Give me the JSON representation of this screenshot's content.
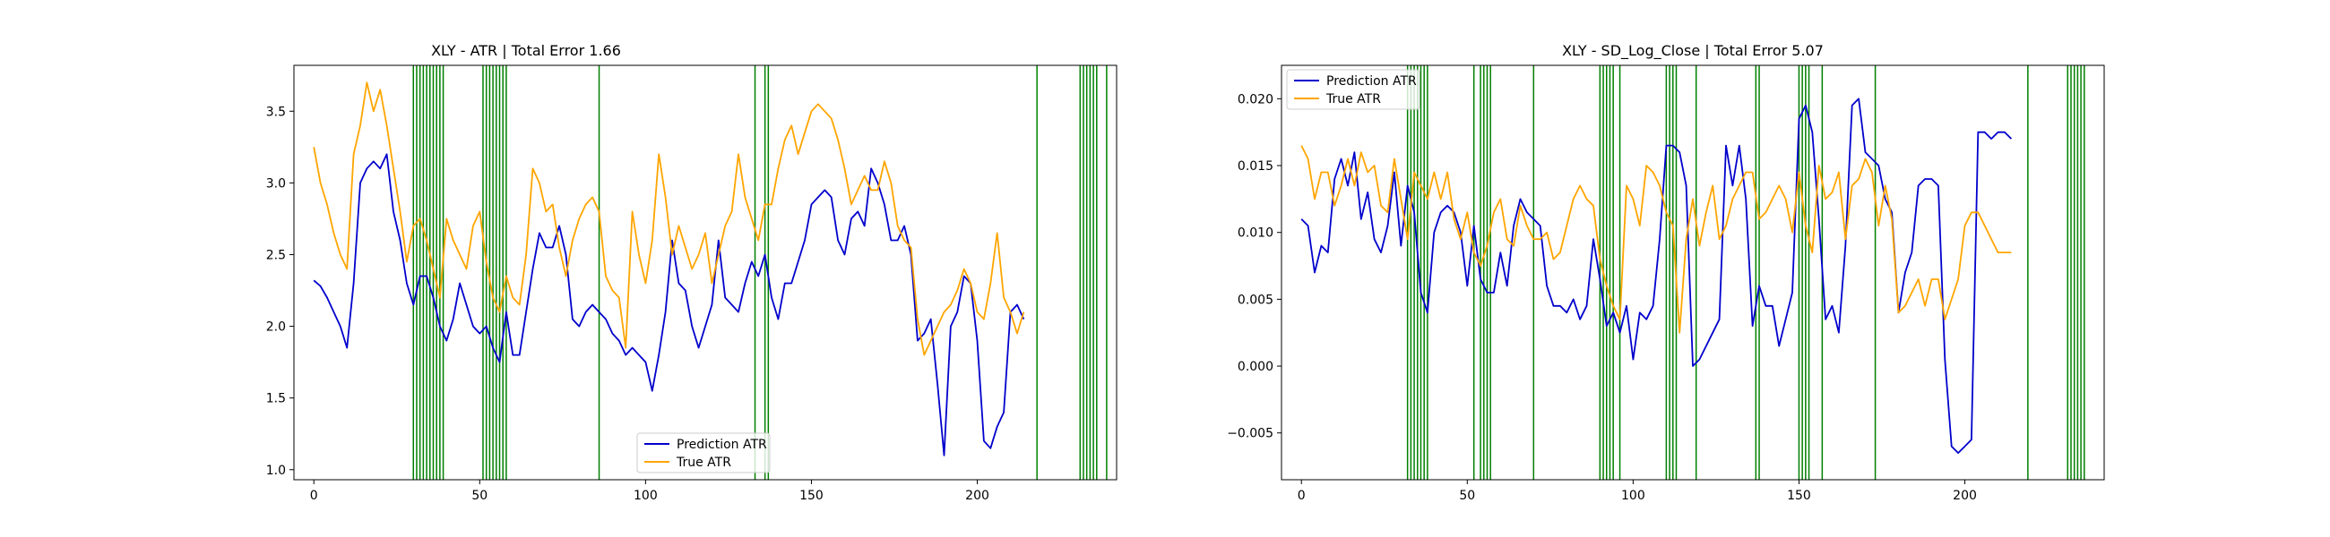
{
  "colors": {
    "prediction": "#0000cc",
    "true": "#ffa500",
    "vline": "#008000",
    "axis": "#000000"
  },
  "chart_data": [
    {
      "type": "line",
      "title": "XLY - ATR | Total Error 1.66",
      "xlabel": "",
      "ylabel": "",
      "xlim": [
        -6,
        242
      ],
      "ylim": [
        0.93,
        3.82
      ],
      "xticks": [
        0,
        50,
        100,
        150,
        200
      ],
      "yticks": [
        1.0,
        1.5,
        2.0,
        2.5,
        3.0,
        3.5
      ],
      "ytick_labels": [
        "1.0",
        "1.5",
        "2.0",
        "2.5",
        "3.0",
        "3.5"
      ],
      "grid": false,
      "legend_position": "lower-center",
      "vlines": [
        30,
        31,
        32,
        33,
        34,
        35,
        36,
        37,
        38,
        39,
        51,
        52,
        53,
        54,
        55,
        56,
        57,
        58,
        86,
        133,
        136,
        137,
        218,
        231,
        232,
        233,
        234,
        235,
        236,
        239
      ],
      "series": [
        {
          "name": "Prediction ATR",
          "color_key": "prediction",
          "x": [
            0,
            2,
            4,
            6,
            8,
            10,
            12,
            14,
            16,
            18,
            20,
            22,
            24,
            26,
            28,
            30,
            32,
            34,
            36,
            38,
            40,
            42,
            44,
            46,
            48,
            50,
            52,
            54,
            56,
            58,
            60,
            62,
            64,
            66,
            68,
            70,
            72,
            74,
            76,
            78,
            80,
            82,
            84,
            86,
            88,
            90,
            92,
            94,
            96,
            98,
            100,
            102,
            104,
            106,
            108,
            110,
            112,
            114,
            116,
            118,
            120,
            122,
            124,
            126,
            128,
            130,
            132,
            134,
            136,
            138,
            140,
            142,
            144,
            146,
            148,
            150,
            152,
            154,
            156,
            158,
            160,
            162,
            164,
            166,
            168,
            170,
            172,
            174,
            176,
            178,
            180,
            182,
            184,
            186,
            188,
            190,
            192,
            194,
            196,
            198,
            200,
            202,
            204,
            206,
            208,
            210,
            212,
            214
          ],
          "y": [
            2.32,
            2.28,
            2.2,
            2.1,
            2.0,
            1.85,
            2.3,
            3.0,
            3.1,
            3.15,
            3.1,
            3.2,
            2.8,
            2.6,
            2.3,
            2.15,
            2.35,
            2.35,
            2.2,
            2.0,
            1.9,
            2.05,
            2.3,
            2.15,
            2.0,
            1.95,
            2.0,
            1.85,
            1.75,
            2.1,
            1.8,
            1.8,
            2.1,
            2.4,
            2.65,
            2.55,
            2.55,
            2.7,
            2.5,
            2.05,
            2.0,
            2.1,
            2.15,
            2.1,
            2.05,
            1.95,
            1.9,
            1.8,
            1.85,
            1.8,
            1.75,
            1.55,
            1.8,
            2.1,
            2.6,
            2.3,
            2.25,
            2.0,
            1.85,
            2.0,
            2.15,
            2.6,
            2.2,
            2.15,
            2.1,
            2.3,
            2.45,
            2.35,
            2.5,
            2.2,
            2.05,
            2.3,
            2.3,
            2.45,
            2.6,
            2.85,
            2.9,
            2.95,
            2.9,
            2.6,
            2.5,
            2.75,
            2.8,
            2.7,
            3.1,
            3.0,
            2.85,
            2.6,
            2.6,
            2.7,
            2.5,
            1.9,
            1.95,
            2.05,
            1.6,
            1.1,
            2.0,
            2.1,
            2.35,
            2.3,
            1.9,
            1.2,
            1.15,
            1.3,
            1.4,
            2.1,
            2.15,
            2.05
          ]
        },
        {
          "name": "True ATR",
          "color_key": "true",
          "x": [
            0,
            2,
            4,
            6,
            8,
            10,
            12,
            14,
            16,
            18,
            20,
            22,
            24,
            26,
            28,
            30,
            32,
            34,
            36,
            38,
            40,
            42,
            44,
            46,
            48,
            50,
            52,
            54,
            56,
            58,
            60,
            62,
            64,
            66,
            68,
            70,
            72,
            74,
            76,
            78,
            80,
            82,
            84,
            86,
            88,
            90,
            92,
            94,
            96,
            98,
            100,
            102,
            104,
            106,
            108,
            110,
            112,
            114,
            116,
            118,
            120,
            122,
            124,
            126,
            128,
            130,
            132,
            134,
            136,
            138,
            140,
            142,
            144,
            146,
            148,
            150,
            152,
            154,
            156,
            158,
            160,
            162,
            164,
            166,
            168,
            170,
            172,
            174,
            176,
            178,
            180,
            182,
            184,
            186,
            188,
            190,
            192,
            194,
            196,
            198,
            200,
            202,
            204,
            206,
            208,
            210,
            212,
            214
          ],
          "y": [
            3.25,
            3.0,
            2.85,
            2.65,
            2.5,
            2.4,
            3.2,
            3.4,
            3.7,
            3.5,
            3.65,
            3.4,
            3.1,
            2.8,
            2.45,
            2.7,
            2.75,
            2.6,
            2.4,
            2.2,
            2.75,
            2.6,
            2.5,
            2.4,
            2.7,
            2.8,
            2.45,
            2.2,
            2.1,
            2.35,
            2.2,
            2.15,
            2.5,
            3.1,
            3.0,
            2.8,
            2.85,
            2.55,
            2.35,
            2.6,
            2.75,
            2.85,
            2.9,
            2.8,
            2.35,
            2.25,
            2.2,
            1.85,
            2.8,
            2.5,
            2.3,
            2.6,
            3.2,
            2.9,
            2.5,
            2.7,
            2.55,
            2.4,
            2.5,
            2.65,
            2.3,
            2.5,
            2.7,
            2.8,
            3.2,
            2.9,
            2.75,
            2.6,
            2.85,
            2.85,
            3.1,
            3.3,
            3.4,
            3.2,
            3.35,
            3.5,
            3.55,
            3.5,
            3.45,
            3.3,
            3.1,
            2.85,
            2.95,
            3.05,
            2.95,
            2.95,
            3.15,
            3.0,
            2.7,
            2.6,
            2.55,
            2.05,
            1.8,
            1.9,
            2.0,
            2.1,
            2.15,
            2.25,
            2.4,
            2.3,
            2.1,
            2.05,
            2.3,
            2.65,
            2.2,
            2.1,
            1.95,
            2.1
          ]
        }
      ]
    },
    {
      "type": "line",
      "title": "XLY - SD_Log_Close | Total Error 5.07",
      "xlabel": "",
      "ylabel": "",
      "xlim": [
        -6,
        242
      ],
      "ylim": [
        -0.0085,
        0.0225
      ],
      "xticks": [
        0,
        50,
        100,
        150,
        200
      ],
      "yticks": [
        -0.005,
        0.0,
        0.005,
        0.01,
        0.015,
        0.02
      ],
      "ytick_labels": [
        "−0.005",
        "0.000",
        "0.005",
        "0.010",
        "0.015",
        "0.020"
      ],
      "grid": false,
      "legend_position": "upper-left",
      "vlines": [
        32,
        33,
        34,
        35,
        36,
        37,
        38,
        52,
        54,
        55,
        56,
        57,
        70,
        90,
        91,
        92,
        93,
        94,
        96,
        110,
        111,
        112,
        113,
        119,
        137,
        138,
        150,
        151,
        152,
        153,
        157,
        173,
        219,
        231,
        232,
        233,
        234,
        235,
        236
      ],
      "series": [
        {
          "name": "Prediction ATR",
          "color_key": "prediction",
          "x": [
            0,
            2,
            4,
            6,
            8,
            10,
            12,
            14,
            16,
            18,
            20,
            22,
            24,
            26,
            28,
            30,
            32,
            34,
            36,
            38,
            40,
            42,
            44,
            46,
            48,
            50,
            52,
            54,
            56,
            58,
            60,
            62,
            64,
            66,
            68,
            70,
            72,
            74,
            76,
            78,
            80,
            82,
            84,
            86,
            88,
            90,
            92,
            94,
            96,
            98,
            100,
            102,
            104,
            106,
            108,
            110,
            112,
            114,
            116,
            118,
            120,
            122,
            124,
            126,
            128,
            130,
            132,
            134,
            136,
            138,
            140,
            142,
            144,
            146,
            148,
            150,
            152,
            154,
            156,
            158,
            160,
            162,
            164,
            166,
            168,
            170,
            172,
            174,
            176,
            178,
            180,
            182,
            184,
            186,
            188,
            190,
            192,
            194,
            196,
            198,
            200,
            202,
            204,
            206,
            208,
            210,
            212,
            214
          ],
          "y": [
            0.011,
            0.0105,
            0.007,
            0.009,
            0.0085,
            0.014,
            0.0155,
            0.0135,
            0.016,
            0.011,
            0.013,
            0.0095,
            0.0085,
            0.0105,
            0.0145,
            0.009,
            0.0135,
            0.0115,
            0.0055,
            0.004,
            0.01,
            0.0115,
            0.012,
            0.0115,
            0.01,
            0.006,
            0.0105,
            0.0065,
            0.0055,
            0.0055,
            0.0085,
            0.006,
            0.0105,
            0.0125,
            0.0115,
            0.011,
            0.0105,
            0.006,
            0.0045,
            0.0045,
            0.004,
            0.005,
            0.0035,
            0.0045,
            0.0095,
            0.0065,
            0.003,
            0.004,
            0.0025,
            0.0045,
            0.0005,
            0.004,
            0.0035,
            0.0045,
            0.0095,
            0.0165,
            0.0165,
            0.016,
            0.0135,
            0.0,
            0.0005,
            0.0015,
            0.0025,
            0.0035,
            0.0165,
            0.0135,
            0.0165,
            0.0125,
            0.003,
            0.006,
            0.0045,
            0.0045,
            0.0015,
            0.0035,
            0.0055,
            0.0185,
            0.0195,
            0.0175,
            0.011,
            0.0035,
            0.0045,
            0.0025,
            0.009,
            0.0195,
            0.02,
            0.016,
            0.0155,
            0.015,
            0.0125,
            0.0115,
            0.004,
            0.007,
            0.0085,
            0.0135,
            0.014,
            0.014,
            0.0135,
            0.0005,
            -0.006,
            -0.0065,
            -0.006,
            -0.0055,
            0.0175,
            0.0175,
            0.017,
            0.0175,
            0.0175,
            0.017
          ]
        },
        {
          "name": "True ATR",
          "color_key": "true",
          "x": [
            0,
            2,
            4,
            6,
            8,
            10,
            12,
            14,
            16,
            18,
            20,
            22,
            24,
            26,
            28,
            30,
            32,
            34,
            36,
            38,
            40,
            42,
            44,
            46,
            48,
            50,
            52,
            54,
            56,
            58,
            60,
            62,
            64,
            66,
            68,
            70,
            72,
            74,
            76,
            78,
            80,
            82,
            84,
            86,
            88,
            90,
            92,
            94,
            96,
            98,
            100,
            102,
            104,
            106,
            108,
            110,
            112,
            114,
            116,
            118,
            120,
            122,
            124,
            126,
            128,
            130,
            132,
            134,
            136,
            138,
            140,
            142,
            144,
            146,
            148,
            150,
            152,
            154,
            156,
            158,
            160,
            162,
            164,
            166,
            168,
            170,
            172,
            174,
            176,
            178,
            180,
            182,
            184,
            186,
            188,
            190,
            192,
            194,
            196,
            198,
            200,
            202,
            204,
            206,
            208,
            210,
            212,
            214
          ],
          "y": [
            0.0165,
            0.0155,
            0.0125,
            0.0145,
            0.0145,
            0.012,
            0.0135,
            0.0155,
            0.0135,
            0.016,
            0.0145,
            0.015,
            0.012,
            0.0115,
            0.0155,
            0.0125,
            0.0095,
            0.0145,
            0.0135,
            0.0125,
            0.0145,
            0.0125,
            0.0145,
            0.011,
            0.0095,
            0.0115,
            0.0085,
            0.0075,
            0.009,
            0.0115,
            0.0125,
            0.0095,
            0.009,
            0.012,
            0.0105,
            0.0095,
            0.0095,
            0.01,
            0.008,
            0.0085,
            0.0105,
            0.0125,
            0.0135,
            0.0125,
            0.012,
            0.008,
            0.006,
            0.0045,
            0.0035,
            0.0135,
            0.0125,
            0.0105,
            0.015,
            0.0145,
            0.0135,
            0.0115,
            0.0105,
            0.0025,
            0.0095,
            0.0125,
            0.009,
            0.0115,
            0.0135,
            0.0095,
            0.0105,
            0.0125,
            0.0135,
            0.0145,
            0.0145,
            0.011,
            0.0115,
            0.0125,
            0.0135,
            0.0125,
            0.01,
            0.0145,
            0.0105,
            0.0085,
            0.015,
            0.0125,
            0.013,
            0.0145,
            0.0095,
            0.0135,
            0.014,
            0.0155,
            0.0145,
            0.0105,
            0.0135,
            0.011,
            0.004,
            0.0045,
            0.0055,
            0.0065,
            0.0045,
            0.0065,
            0.0065,
            0.0035,
            0.005,
            0.0065,
            0.0105,
            0.0115,
            0.0115,
            0.0105,
            0.0095,
            0.0085,
            0.0085,
            0.0085
          ]
        }
      ]
    }
  ]
}
